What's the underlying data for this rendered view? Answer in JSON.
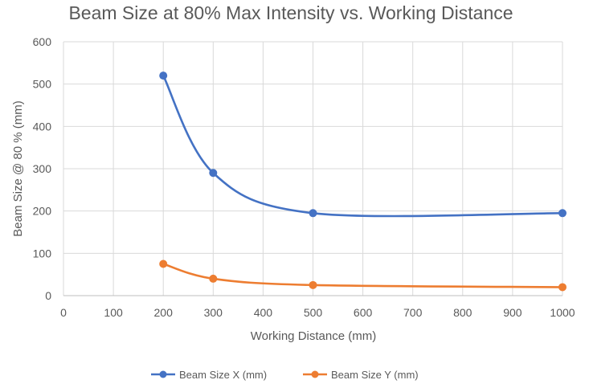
{
  "chart_data": {
    "type": "line",
    "title": "Beam Size at 80% Max Intensity vs. Working Distance",
    "xlabel": "Working Distance (mm)",
    "ylabel": "Beam Size @ 80 % (mm)",
    "xlim": [
      0,
      1000
    ],
    "ylim": [
      0,
      600
    ],
    "x_ticks": [
      0,
      100,
      200,
      300,
      400,
      500,
      600,
      700,
      800,
      900,
      1000
    ],
    "y_ticks": [
      0,
      100,
      200,
      300,
      400,
      500,
      600
    ],
    "grid": true,
    "smooth": true,
    "legend_position": "bottom",
    "series": [
      {
        "name": "Beam Size X (mm)",
        "color": "#4472C4",
        "x": [
          200,
          300,
          500,
          1000
        ],
        "y": [
          520,
          290,
          195,
          195
        ]
      },
      {
        "name": "Beam Size Y (mm)",
        "color": "#ED7D31",
        "x": [
          200,
          300,
          500,
          1000
        ],
        "y": [
          75,
          40,
          25,
          20
        ]
      }
    ]
  }
}
